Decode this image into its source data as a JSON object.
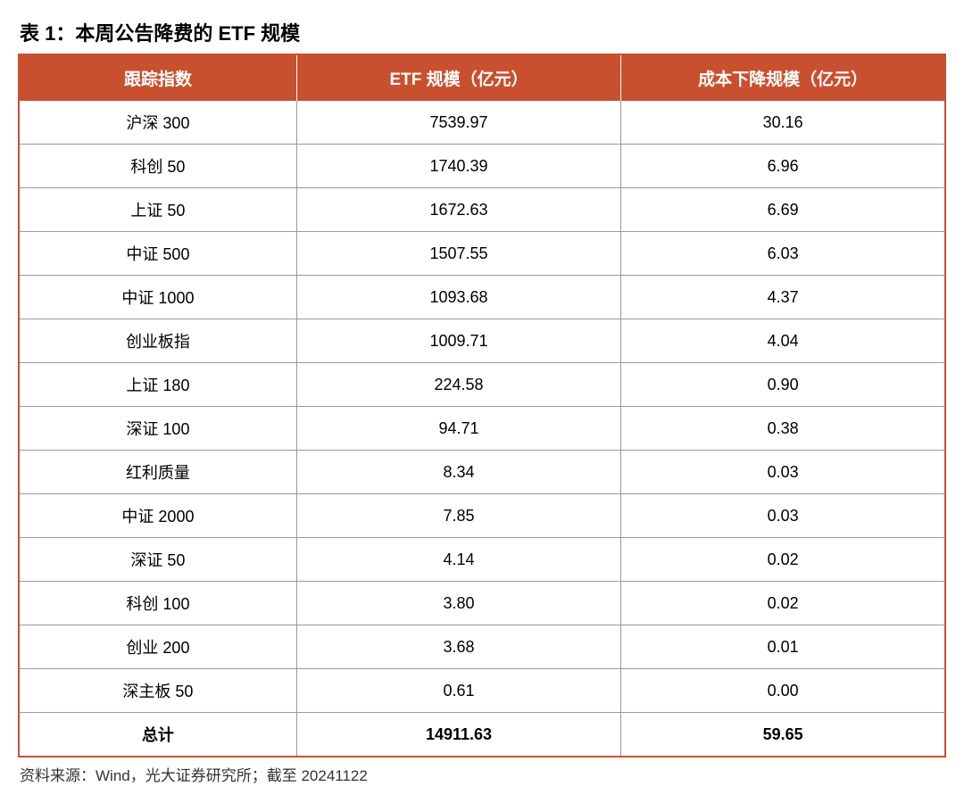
{
  "title": "表 1：本周公告降费的 ETF 规模",
  "source": "资料来源：Wind，光大证券研究所；截至 20241122",
  "table": {
    "header_bg_color": "#c8502f",
    "header_text_color": "#ffffff",
    "border_color": "#c8502f",
    "cell_border_color": "#999999",
    "title_fontsize": 22,
    "header_fontsize": 19,
    "cell_fontsize": 18,
    "source_fontsize": 17,
    "columns": [
      "跟踪指数",
      "ETF 规模（亿元）",
      "成本下降规模（亿元）"
    ],
    "rows": [
      {
        "index": "沪深 300",
        "etf_scale": "7539.97",
        "cost_reduction": "30.16"
      },
      {
        "index": "科创 50",
        "etf_scale": "1740.39",
        "cost_reduction": "6.96"
      },
      {
        "index": "上证 50",
        "etf_scale": "1672.63",
        "cost_reduction": "6.69"
      },
      {
        "index": "中证 500",
        "etf_scale": "1507.55",
        "cost_reduction": "6.03"
      },
      {
        "index": "中证 1000",
        "etf_scale": "1093.68",
        "cost_reduction": "4.37"
      },
      {
        "index": "创业板指",
        "etf_scale": "1009.71",
        "cost_reduction": "4.04"
      },
      {
        "index": "上证 180",
        "etf_scale": "224.58",
        "cost_reduction": "0.90"
      },
      {
        "index": "深证 100",
        "etf_scale": "94.71",
        "cost_reduction": "0.38"
      },
      {
        "index": "红利质量",
        "etf_scale": "8.34",
        "cost_reduction": "0.03"
      },
      {
        "index": "中证 2000",
        "etf_scale": "7.85",
        "cost_reduction": "0.03"
      },
      {
        "index": "深证 50",
        "etf_scale": "4.14",
        "cost_reduction": "0.02"
      },
      {
        "index": "科创 100",
        "etf_scale": "3.80",
        "cost_reduction": "0.02"
      },
      {
        "index": "创业 200",
        "etf_scale": "3.68",
        "cost_reduction": "0.01"
      },
      {
        "index": "深主板 50",
        "etf_scale": "0.61",
        "cost_reduction": "0.00"
      }
    ],
    "total": {
      "index": "总计",
      "etf_scale": "14911.63",
      "cost_reduction": "59.65"
    }
  }
}
